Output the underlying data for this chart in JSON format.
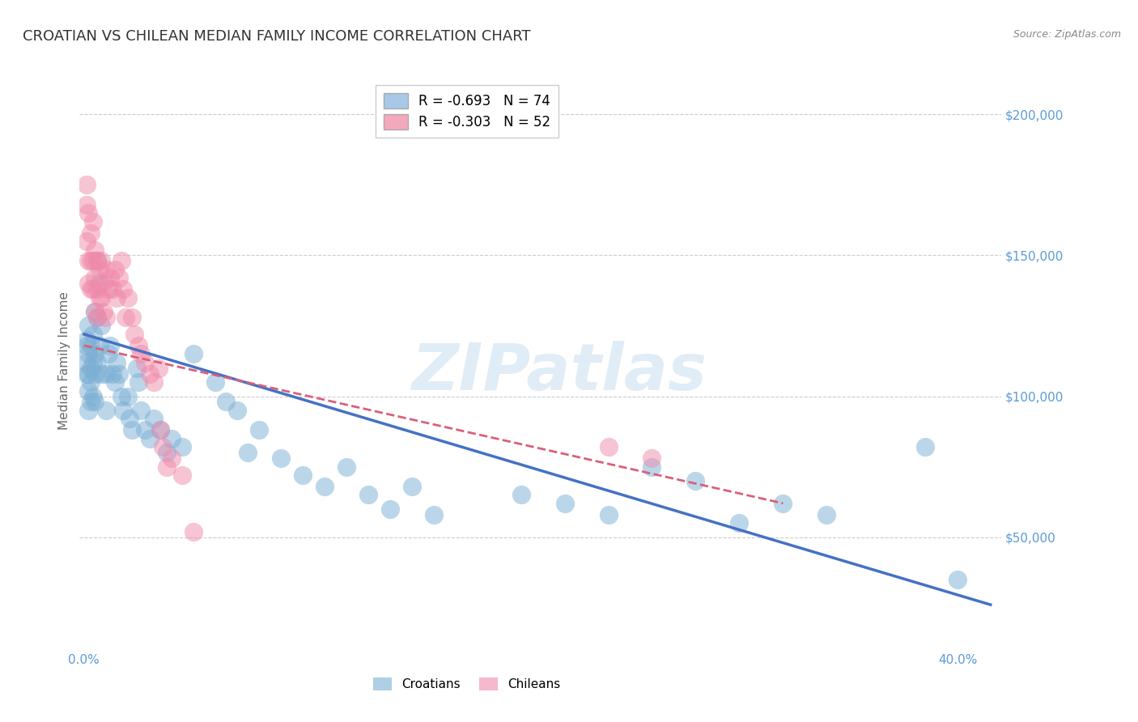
{
  "title": "CROATIAN VS CHILEAN MEDIAN FAMILY INCOME CORRELATION CHART",
  "source": "Source: ZipAtlas.com",
  "ylabel": "Median Family Income",
  "y_tick_labels": [
    "$50,000",
    "$100,000",
    "$150,000",
    "$200,000"
  ],
  "y_tick_values": [
    50000,
    100000,
    150000,
    200000
  ],
  "y_min": 10000,
  "y_max": 215000,
  "x_min": -0.002,
  "x_max": 0.42,
  "watermark_text": "ZIPatlas",
  "croatian_color": "#7bafd4",
  "chilean_color": "#f08aaa",
  "croatian_line_color": "#4472c4",
  "chilean_line_color": "#d9607a",
  "background_color": "#ffffff",
  "grid_color": "#cccccc",
  "title_color": "#333333",
  "axis_label_color": "#5b9bd5",
  "right_tick_color": "#5b9bd5",
  "legend_blue_label": "R = -0.693   N = 74",
  "legend_pink_label": "R = -0.303   N = 52",
  "legend_blue_color": "#a8c8e8",
  "legend_pink_color": "#f4a8be",
  "croatian_scatter": [
    [
      0.001,
      120000
    ],
    [
      0.001,
      112000
    ],
    [
      0.001,
      108000
    ],
    [
      0.001,
      118000
    ],
    [
      0.002,
      125000
    ],
    [
      0.002,
      115000
    ],
    [
      0.002,
      108000
    ],
    [
      0.002,
      102000
    ],
    [
      0.002,
      95000
    ],
    [
      0.003,
      118000
    ],
    [
      0.003,
      110000
    ],
    [
      0.003,
      105000
    ],
    [
      0.003,
      98000
    ],
    [
      0.004,
      122000
    ],
    [
      0.004,
      112000
    ],
    [
      0.004,
      100000
    ],
    [
      0.005,
      130000
    ],
    [
      0.005,
      115000
    ],
    [
      0.005,
      108000
    ],
    [
      0.005,
      98000
    ],
    [
      0.006,
      148000
    ],
    [
      0.006,
      128000
    ],
    [
      0.006,
      112000
    ],
    [
      0.007,
      140000
    ],
    [
      0.007,
      118000
    ],
    [
      0.008,
      125000
    ],
    [
      0.008,
      108000
    ],
    [
      0.01,
      108000
    ],
    [
      0.01,
      95000
    ],
    [
      0.011,
      115000
    ],
    [
      0.012,
      118000
    ],
    [
      0.013,
      108000
    ],
    [
      0.014,
      105000
    ],
    [
      0.015,
      112000
    ],
    [
      0.016,
      108000
    ],
    [
      0.017,
      100000
    ],
    [
      0.018,
      95000
    ],
    [
      0.02,
      100000
    ],
    [
      0.021,
      92000
    ],
    [
      0.022,
      88000
    ],
    [
      0.024,
      110000
    ],
    [
      0.025,
      105000
    ],
    [
      0.026,
      95000
    ],
    [
      0.028,
      88000
    ],
    [
      0.03,
      85000
    ],
    [
      0.032,
      92000
    ],
    [
      0.035,
      88000
    ],
    [
      0.038,
      80000
    ],
    [
      0.04,
      85000
    ],
    [
      0.045,
      82000
    ],
    [
      0.05,
      115000
    ],
    [
      0.06,
      105000
    ],
    [
      0.065,
      98000
    ],
    [
      0.07,
      95000
    ],
    [
      0.075,
      80000
    ],
    [
      0.08,
      88000
    ],
    [
      0.09,
      78000
    ],
    [
      0.1,
      72000
    ],
    [
      0.11,
      68000
    ],
    [
      0.12,
      75000
    ],
    [
      0.13,
      65000
    ],
    [
      0.14,
      60000
    ],
    [
      0.15,
      68000
    ],
    [
      0.16,
      58000
    ],
    [
      0.2,
      65000
    ],
    [
      0.22,
      62000
    ],
    [
      0.24,
      58000
    ],
    [
      0.26,
      75000
    ],
    [
      0.28,
      70000
    ],
    [
      0.3,
      55000
    ],
    [
      0.32,
      62000
    ],
    [
      0.34,
      58000
    ],
    [
      0.385,
      82000
    ],
    [
      0.4,
      35000
    ]
  ],
  "chilean_scatter": [
    [
      0.001,
      175000
    ],
    [
      0.001,
      168000
    ],
    [
      0.001,
      155000
    ],
    [
      0.002,
      165000
    ],
    [
      0.002,
      148000
    ],
    [
      0.002,
      140000
    ],
    [
      0.003,
      158000
    ],
    [
      0.003,
      148000
    ],
    [
      0.003,
      138000
    ],
    [
      0.004,
      162000
    ],
    [
      0.004,
      148000
    ],
    [
      0.004,
      138000
    ],
    [
      0.005,
      152000
    ],
    [
      0.005,
      142000
    ],
    [
      0.005,
      130000
    ],
    [
      0.006,
      148000
    ],
    [
      0.006,
      138000
    ],
    [
      0.006,
      128000
    ],
    [
      0.007,
      145000
    ],
    [
      0.007,
      135000
    ],
    [
      0.008,
      148000
    ],
    [
      0.008,
      135000
    ],
    [
      0.009,
      140000
    ],
    [
      0.009,
      130000
    ],
    [
      0.01,
      145000
    ],
    [
      0.01,
      128000
    ],
    [
      0.011,
      138000
    ],
    [
      0.012,
      142000
    ],
    [
      0.013,
      138000
    ],
    [
      0.014,
      145000
    ],
    [
      0.015,
      135000
    ],
    [
      0.016,
      142000
    ],
    [
      0.017,
      148000
    ],
    [
      0.018,
      138000
    ],
    [
      0.019,
      128000
    ],
    [
      0.02,
      135000
    ],
    [
      0.022,
      128000
    ],
    [
      0.023,
      122000
    ],
    [
      0.025,
      118000
    ],
    [
      0.026,
      115000
    ],
    [
      0.028,
      112000
    ],
    [
      0.03,
      108000
    ],
    [
      0.032,
      105000
    ],
    [
      0.034,
      110000
    ],
    [
      0.035,
      88000
    ],
    [
      0.036,
      82000
    ],
    [
      0.038,
      75000
    ],
    [
      0.04,
      78000
    ],
    [
      0.045,
      72000
    ],
    [
      0.05,
      52000
    ],
    [
      0.24,
      82000
    ],
    [
      0.26,
      78000
    ]
  ],
  "croatian_line_x": [
    0.0,
    0.415
  ],
  "croatian_line_y": [
    122000,
    26000
  ],
  "chilean_line_x": [
    0.0,
    0.32
  ],
  "chilean_line_y": [
    118000,
    62000
  ],
  "title_fontsize": 13,
  "axis_fontsize": 11,
  "tick_fontsize": 11,
  "legend_fontsize": 12,
  "source_fontsize": 9
}
